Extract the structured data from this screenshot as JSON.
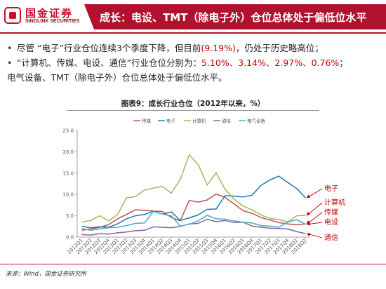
{
  "header": {
    "logo_cn": "国金证券",
    "logo_en": "SINOLINK SECURITIES",
    "title": "成长：电设、TMT（除电子外）仓位总体处于偏低位水平"
  },
  "bullets": [
    {
      "parts": [
        "尽管 “电子”行业仓位连续3个季度下降，但目前",
        "(9.19%)",
        "，仍处于历史略高位；"
      ]
    },
    {
      "parts": [
        "“计算机、传媒、电设、通信”行业仓位分别为：",
        "5.10%、3.14%、2.97%、0.76%",
        "；"
      ]
    },
    {
      "parts": [
        "电气设备、TMT（除电子外）仓位总体处于偏低位水平。"
      ]
    }
  ],
  "figure_title": "图表9：成长行业仓位（2012年以来，%）",
  "source": "来源：Wind，国金证券研究所",
  "chart_data": {
    "type": "line",
    "x": [
      "2012Q1",
      "2012Q2",
      "2012Q3",
      "2012Q4",
      "2013Q1",
      "2013Q2",
      "2013Q3",
      "2013Q4",
      "2014Q1",
      "2014Q2",
      "2014Q3",
      "2014Q4",
      "2015Q1",
      "2015Q2",
      "2015Q3",
      "2015Q4",
      "2016Q1",
      "2016Q2",
      "2016Q3",
      "2016Q4",
      "2017Q1",
      "2017Q2",
      "2017Q3",
      "2017Q4",
      "2018Q1",
      "2018Q2"
    ],
    "ylim": [
      0,
      25
    ],
    "yticks": [
      "0.0",
      "5.0",
      "10.0",
      "15.0",
      "20.0",
      "25.0"
    ],
    "legend_position": "top",
    "series": [
      {
        "name": "传媒",
        "color": "#c0504d",
        "values": [
          1.6,
          1.9,
          2.3,
          2.9,
          4.3,
          5.3,
          6.4,
          6.3,
          6.1,
          6.0,
          4.6,
          3.8,
          8.6,
          8.2,
          8.7,
          10.1,
          9.3,
          7.8,
          6.2,
          5.6,
          4.6,
          4.0,
          3.4,
          3.1,
          2.9,
          3.1
        ]
      },
      {
        "name": "电子",
        "color": "#1f77b4",
        "values": [
          2.5,
          2.2,
          2.4,
          2.3,
          3.1,
          4.3,
          5.0,
          5.3,
          6.1,
          5.4,
          5.9,
          3.9,
          4.5,
          5.2,
          6.5,
          6.6,
          9.7,
          9.6,
          9.4,
          9.8,
          12.1,
          13.4,
          14.3,
          12.8,
          11.4,
          9.2
        ]
      },
      {
        "name": "计算机",
        "color": "#9bbb59",
        "values": [
          3.5,
          3.9,
          5.0,
          3.8,
          5.3,
          9.2,
          9.5,
          11.0,
          11.5,
          11.9,
          10.3,
          13.5,
          19.3,
          17.0,
          12.2,
          15.1,
          11.2,
          8.9,
          7.3,
          6.4,
          5.2,
          4.4,
          4.1,
          3.6,
          5.0,
          5.1
        ]
      },
      {
        "name": "通信",
        "color": "#8064a2",
        "values": [
          0.6,
          0.5,
          0.8,
          0.7,
          1.0,
          1.2,
          1.5,
          1.6,
          2.4,
          2.3,
          2.2,
          2.5,
          3.1,
          3.2,
          4.2,
          3.6,
          3.9,
          3.4,
          3.5,
          2.6,
          2.3,
          2.1,
          2.0,
          1.9,
          1.3,
          0.8
        ]
      },
      {
        "name": "电气设备",
        "color": "#4bacc6",
        "values": [
          2.0,
          1.6,
          1.9,
          2.2,
          2.3,
          2.7,
          3.2,
          3.3,
          6.0,
          5.4,
          5.0,
          2.6,
          3.0,
          3.8,
          5.1,
          4.3,
          4.2,
          3.8,
          3.5,
          3.3,
          2.7,
          2.6,
          2.3,
          3.5,
          4.1,
          3.0
        ]
      }
    ],
    "callouts": [
      "电子",
      "计算机",
      "传媒",
      "电设",
      "通信"
    ]
  }
}
